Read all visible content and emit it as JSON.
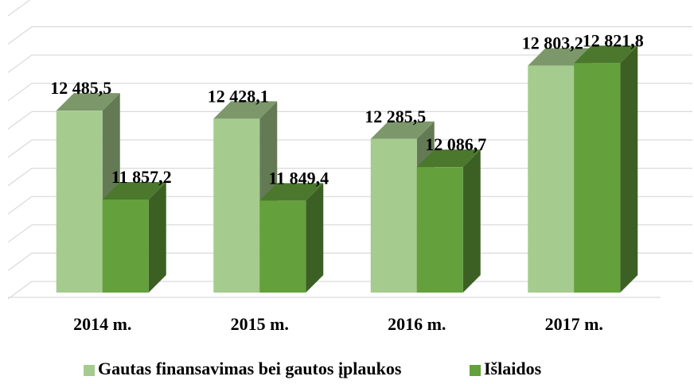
{
  "chart_data": {
    "type": "bar3d",
    "categories": [
      "2014 m.",
      "2015 m.",
      "2016 m.",
      "2017 m."
    ],
    "series": [
      {
        "name": "Gautas finansavimas bei gautos įplaukos",
        "color": "#a5cb8e",
        "values": [
          12485.5,
          12428.1,
          12285.5,
          12803.2
        ],
        "value_labels": [
          "12 485,5",
          "12 428,1",
          "12 285,5",
          "12 803,2"
        ]
      },
      {
        "name": "Išlaidos",
        "color": "#64a03c",
        "values": [
          11857.2,
          11849.4,
          12086.7,
          12821.8
        ],
        "value_labels": [
          "11 857,2",
          "11 849,4",
          "12 086,7",
          "12 821,8"
        ]
      }
    ],
    "ylim": [
      11200,
      13200
    ],
    "yticks": [
      11200,
      11400,
      11600,
      11800,
      12000,
      12200,
      12400,
      12600,
      12800,
      13000,
      13200
    ],
    "grid": true,
    "legend": "bottom"
  }
}
